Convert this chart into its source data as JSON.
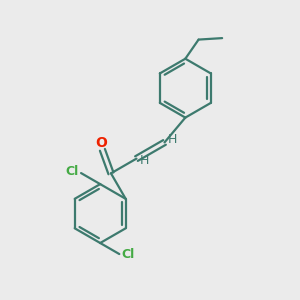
{
  "background_color": "#ebebeb",
  "bond_color": "#3d7a6e",
  "cl_color": "#44aa44",
  "o_color": "#ee2200",
  "h_color": "#3d7a6e",
  "bond_width": 1.6,
  "figsize": [
    3.0,
    3.0
  ],
  "dpi": 100,
  "xlim": [
    0,
    10
  ],
  "ylim": [
    0,
    10
  ]
}
